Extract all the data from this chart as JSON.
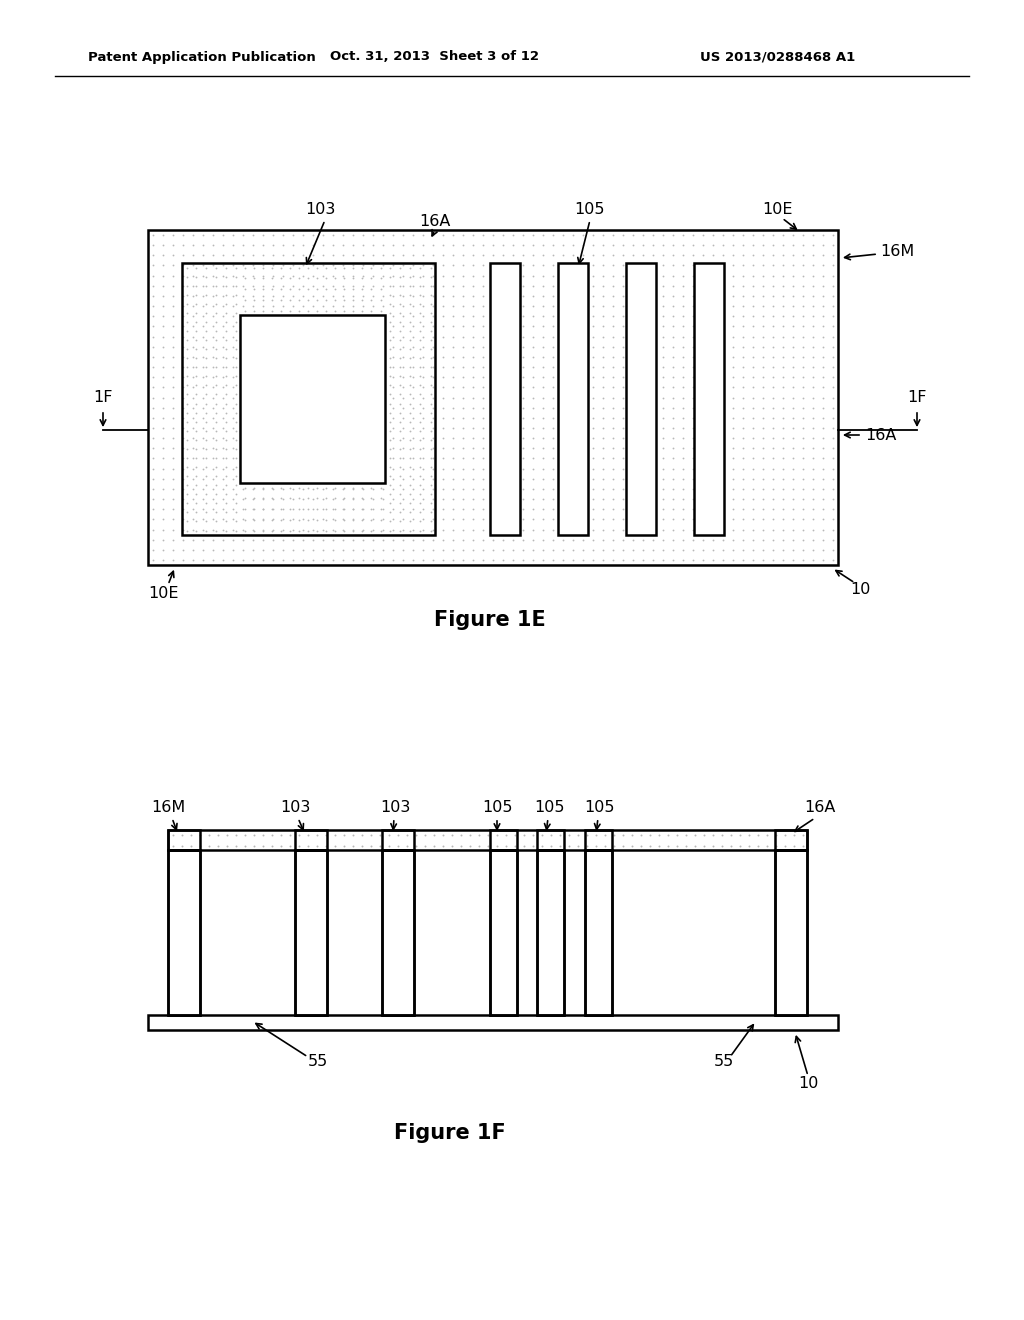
{
  "bg_color": "#ffffff",
  "header_text_left": "Patent Application Publication",
  "header_text_mid": "Oct. 31, 2013  Sheet 3 of 12",
  "header_text_right": "US 2013/0288468 A1",
  "fig1e_title": "Figure 1E",
  "fig1f_title": "Figure 1F",
  "line_color": "#000000",
  "white_color": "#ffffff",
  "dot_color": "#b8b8b8"
}
